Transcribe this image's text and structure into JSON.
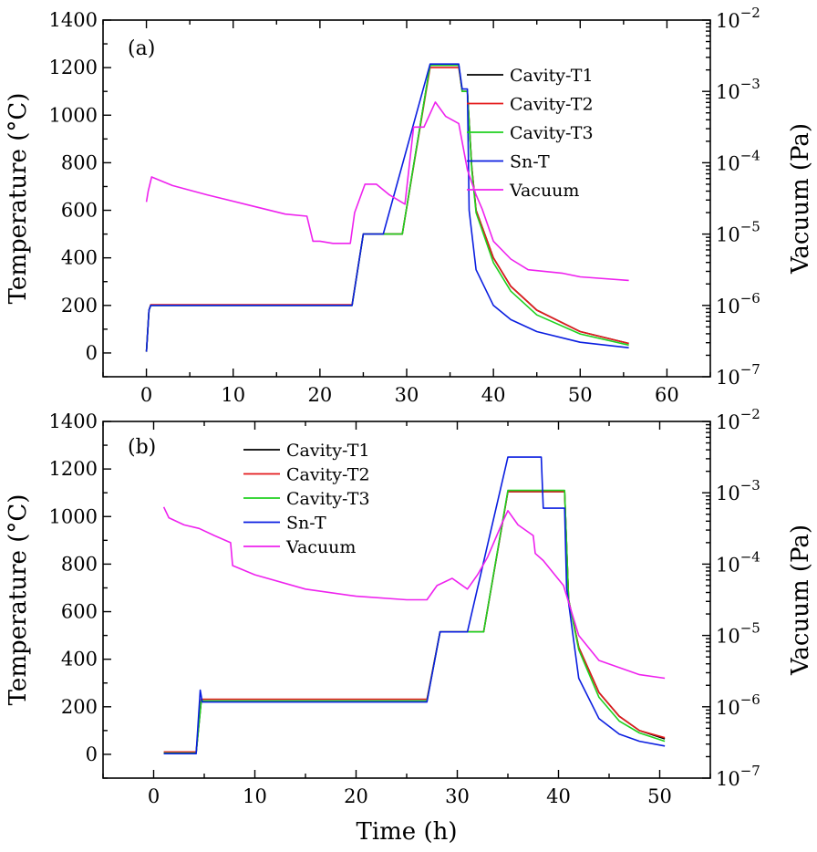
{
  "chart_data": [
    {
      "type": "line",
      "panel_label": "(a)",
      "xlabel": "Time (h)",
      "ylabel": "Temperature (°C)",
      "y2label": "Vacuum (Pa)",
      "xlim": [
        -5,
        65
      ],
      "ylim": [
        -100,
        1400
      ],
      "y2_log_exponent_lim": [
        -7,
        -2
      ],
      "xticks": [
        "0",
        "10",
        "20",
        "30",
        "40",
        "50",
        "60"
      ],
      "yticks": [
        "0",
        "200",
        "400",
        "600",
        "800",
        "1000",
        "1200",
        "1400"
      ],
      "y2ticks": [
        {
          "base": "10",
          "exp": "−7"
        },
        {
          "base": "10",
          "exp": "−6"
        },
        {
          "base": "10",
          "exp": "−5"
        },
        {
          "base": "10",
          "exp": "−4"
        },
        {
          "base": "10",
          "exp": "−3"
        },
        {
          "base": "10",
          "exp": "−2"
        }
      ],
      "legend": [
        "Cavity-T1",
        "Cavity-T2",
        "Cavity-T3",
        "Sn-T",
        "Vacuum"
      ],
      "series": [
        {
          "name": "Cavity-T1",
          "color": "#000000",
          "axis": "left",
          "x": [
            0,
            0.3,
            0.5,
            23.7,
            25,
            29.5,
            32.7,
            36,
            36.4,
            37,
            37.5,
            38,
            40,
            42,
            45,
            50,
            55.6
          ],
          "y": [
            5,
            180,
            200,
            200,
            500,
            500,
            1210,
            1210,
            1100,
            1100,
            780,
            600,
            400,
            280,
            180,
            90,
            40
          ]
        },
        {
          "name": "Cavity-T2",
          "color": "#e41a1c",
          "axis": "left",
          "x": [
            0,
            0.3,
            0.5,
            23.7,
            25,
            29.5,
            32.7,
            36,
            36.4,
            37,
            37.5,
            38,
            40,
            42,
            45,
            50,
            55.6
          ],
          "y": [
            5,
            180,
            203,
            203,
            500,
            500,
            1200,
            1200,
            1100,
            1100,
            780,
            600,
            400,
            280,
            180,
            90,
            40
          ]
        },
        {
          "name": "Cavity-T3",
          "color": "#1fd11f",
          "axis": "left",
          "x": [
            0,
            0.3,
            0.5,
            23.7,
            25,
            29.5,
            32.7,
            36,
            36.4,
            37,
            37.5,
            38,
            40,
            42,
            45,
            50,
            55.6
          ],
          "y": [
            5,
            180,
            200,
            200,
            500,
            500,
            1210,
            1210,
            1100,
            1100,
            770,
            590,
            380,
            260,
            160,
            80,
            33
          ]
        },
        {
          "name": "Sn-T",
          "color": "#0a1ee0",
          "axis": "left",
          "x": [
            0,
            0.3,
            0.5,
            23.7,
            25,
            27.3,
            32.7,
            36,
            36.4,
            37,
            37.2,
            38,
            40,
            42,
            45,
            50,
            55.6
          ],
          "y": [
            5,
            180,
            200,
            200,
            500,
            500,
            1215,
            1215,
            1110,
            1110,
            600,
            350,
            200,
            140,
            90,
            45,
            22
          ]
        },
        {
          "name": "Vacuum",
          "color": "#ee22ee",
          "axis": "right_log",
          "x": [
            0,
            0.2,
            0.6,
            3,
            7,
            12,
            16,
            18.5,
            19.2,
            20,
            21.5,
            23.5,
            24,
            25.2,
            26.5,
            28,
            29.8,
            30.8,
            32,
            33.3,
            34.5,
            36,
            37,
            38,
            38.7,
            40,
            42,
            44,
            48,
            50,
            55.6
          ],
          "logy": [
            -4.55,
            -4.4,
            -4.2,
            -4.32,
            -4.45,
            -4.6,
            -4.72,
            -4.75,
            -5.1,
            -5.1,
            -5.13,
            -5.13,
            -4.7,
            -4.3,
            -4.3,
            -4.45,
            -4.58,
            -3.5,
            -3.5,
            -3.15,
            -3.35,
            -3.45,
            -4.1,
            -4.45,
            -4.65,
            -5.1,
            -5.35,
            -5.5,
            -5.55,
            -5.6,
            -5.65
          ]
        }
      ]
    },
    {
      "type": "line",
      "panel_label": "(b)",
      "xlabel": "Time (h)",
      "ylabel": "Temperature (°C)",
      "y2label": "Vacuum (Pa)",
      "xlim": [
        -5,
        55
      ],
      "ylim": [
        -100,
        1400
      ],
      "y2_log_exponent_lim": [
        -7,
        -2
      ],
      "xticks": [
        "0",
        "10",
        "20",
        "30",
        "40",
        "50"
      ],
      "yticks": [
        "0",
        "200",
        "400",
        "600",
        "800",
        "1000",
        "1200",
        "1400"
      ],
      "y2ticks": [
        {
          "base": "10",
          "exp": "−7"
        },
        {
          "base": "10",
          "exp": "−6"
        },
        {
          "base": "10",
          "exp": "−5"
        },
        {
          "base": "10",
          "exp": "−4"
        },
        {
          "base": "10",
          "exp": "−3"
        },
        {
          "base": "10",
          "exp": "−2"
        }
      ],
      "legend": [
        "Cavity-T1",
        "Cavity-T2",
        "Cavity-T3",
        "Sn-T",
        "Vacuum"
      ],
      "series": [
        {
          "name": "Cavity-T1",
          "color": "#000000",
          "axis": "left",
          "x": [
            1,
            4.2,
            4.7,
            27,
            28.3,
            32.6,
            35,
            40.6,
            41,
            42,
            44,
            46,
            48,
            50.5
          ],
          "y": [
            5,
            5,
            225,
            225,
            515,
            515,
            1105,
            1105,
            650,
            450,
            260,
            160,
            100,
            65
          ]
        },
        {
          "name": "Cavity-T2",
          "color": "#e41a1c",
          "axis": "left",
          "x": [
            1,
            4.2,
            4.7,
            27,
            28.3,
            32.6,
            35,
            40.6,
            41,
            42,
            44,
            46,
            48,
            50.5
          ],
          "y": [
            10,
            10,
            232,
            232,
            515,
            515,
            1105,
            1105,
            650,
            450,
            260,
            160,
            100,
            70
          ]
        },
        {
          "name": "Cavity-T3",
          "color": "#1fd11f",
          "axis": "left",
          "x": [
            1,
            4.2,
            4.7,
            27,
            28.3,
            32.6,
            35,
            40.6,
            41,
            42,
            44,
            46,
            48,
            50.5
          ],
          "y": [
            5,
            5,
            225,
            225,
            515,
            515,
            1110,
            1110,
            650,
            440,
            240,
            140,
            90,
            55
          ]
        },
        {
          "name": "Sn-T",
          "color": "#0a1ee0",
          "axis": "left",
          "x": [
            1,
            4.2,
            4.6,
            4.8,
            27,
            28.3,
            31,
            35,
            38.3,
            38.5,
            40.6,
            40.8,
            42,
            44,
            46,
            48,
            50.5
          ],
          "y": [
            3,
            3,
            270,
            220,
            220,
            515,
            515,
            1250,
            1250,
            1035,
            1035,
            700,
            320,
            150,
            85,
            55,
            35
          ]
        },
        {
          "name": "Vacuum",
          "color": "#ee22ee",
          "axis": "right_log",
          "x": [
            1,
            1.5,
            3,
            4.5,
            6,
            7.6,
            7.8,
            10,
            15,
            20,
            25,
            27,
            28,
            29.5,
            31,
            32,
            33,
            34.5,
            35,
            36,
            37.5,
            37.7,
            38.5,
            40.5,
            42,
            44,
            48,
            50.5
          ],
          "logy": [
            -3.2,
            -3.35,
            -3.45,
            -3.5,
            -3.6,
            -3.7,
            -4.02,
            -4.15,
            -4.35,
            -4.45,
            -4.5,
            -4.5,
            -4.3,
            -4.2,
            -4.35,
            -4.15,
            -3.9,
            -3.4,
            -3.25,
            -3.45,
            -3.6,
            -3.85,
            -3.95,
            -4.3,
            -5.0,
            -5.35,
            -5.55,
            -5.6
          ]
        }
      ]
    }
  ]
}
